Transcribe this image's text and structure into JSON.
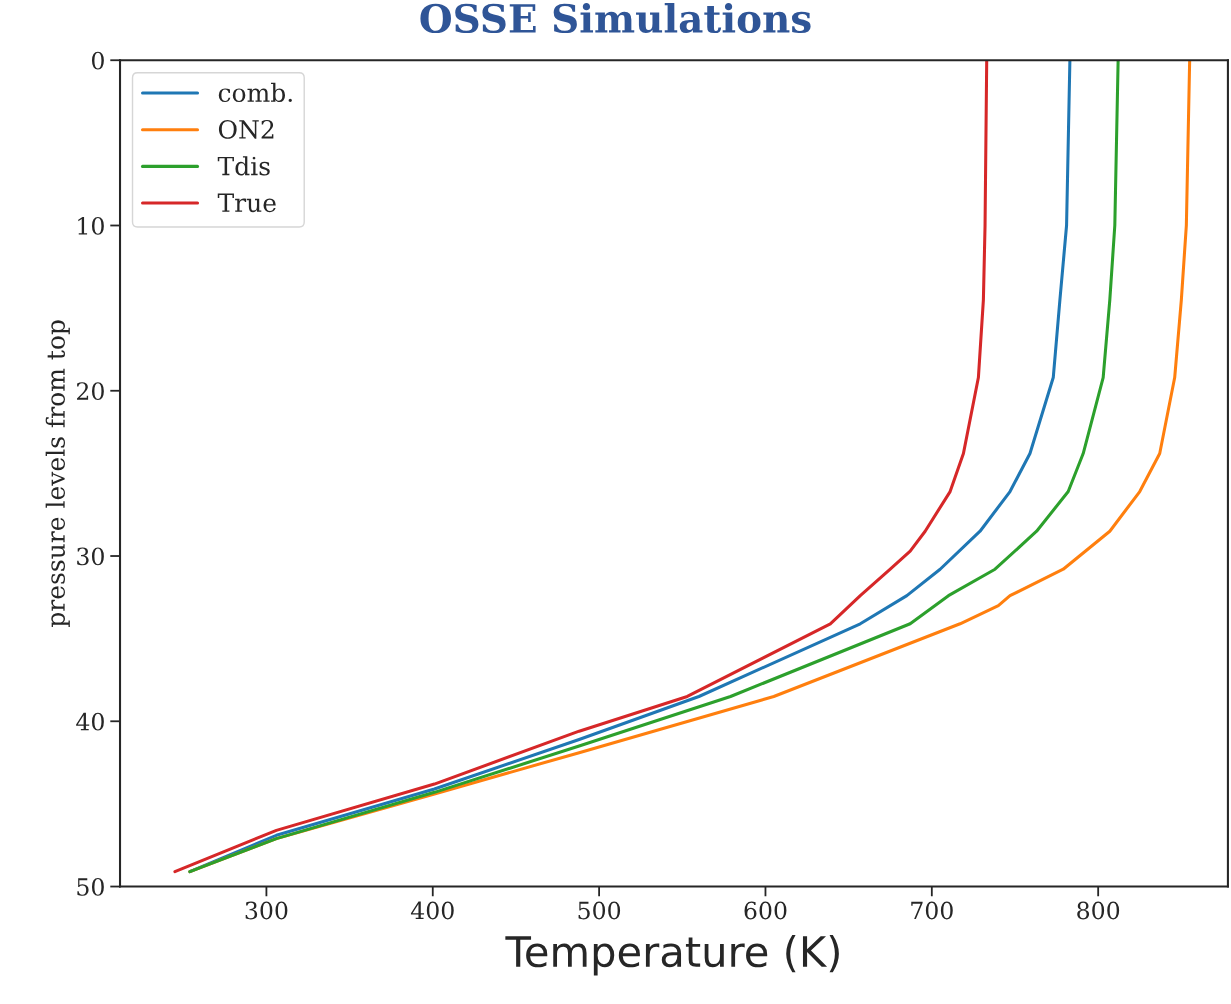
{
  "chart_data": {
    "type": "line",
    "title": "OSSE Simulations",
    "xlabel": "Temperature (K)",
    "ylabel": "pressure levels from top",
    "xlim": [
      212,
      878
    ],
    "xticks": [
      300,
      400,
      500,
      600,
      700,
      800
    ],
    "ylim": [
      50,
      0
    ],
    "yticks": [
      0,
      10,
      20,
      30,
      40,
      50
    ],
    "grid": false,
    "legend": "top left",
    "marker": "none",
    "line_style": "solid",
    "series": [
      {
        "name": "comb.",
        "color": "#1f77b4",
        "x": [
          783,
          781,
          777,
          773,
          759,
          747,
          729,
          705,
          685,
          657,
          560,
          488,
          401,
          306,
          254
        ],
        "values": [
          0,
          10,
          14.5,
          19.2,
          23.8,
          26.1,
          28.5,
          30.8,
          32.4,
          34.1,
          38.5,
          41.1,
          44.1,
          46.9,
          49.1
        ]
      },
      {
        "name": "ON2",
        "color": "#ff7f0e",
        "x": [
          855,
          853,
          850,
          846,
          837,
          825,
          807,
          779,
          747,
          740,
          717,
          605,
          488,
          401,
          306,
          254
        ],
        "values": [
          0,
          10,
          14.5,
          19.2,
          23.8,
          26.1,
          28.5,
          30.8,
          32.4,
          33.0,
          34.1,
          38.5,
          41.9,
          44.4,
          47.1,
          49.1
        ]
      },
      {
        "name": "Tdis",
        "color": "#2ca02c",
        "x": [
          812,
          810,
          807,
          803,
          791,
          782,
          763,
          738,
          710,
          687,
          579,
          488,
          401,
          306,
          254
        ],
        "values": [
          0,
          10,
          14.5,
          19.2,
          23.8,
          26.1,
          28.5,
          30.8,
          32.4,
          34.1,
          38.5,
          41.5,
          44.3,
          47.1,
          49.1
        ]
      },
      {
        "name": "True",
        "color": "#d62728",
        "x": [
          733,
          732,
          731,
          728,
          719,
          711,
          696,
          687,
          675,
          657,
          639,
          553,
          488,
          401,
          306,
          245
        ],
        "values": [
          0,
          10,
          14.5,
          19.2,
          23.8,
          26.1,
          28.5,
          29.7,
          30.8,
          32.4,
          34.1,
          38.5,
          40.6,
          43.8,
          46.6,
          49.1
        ]
      }
    ]
  }
}
